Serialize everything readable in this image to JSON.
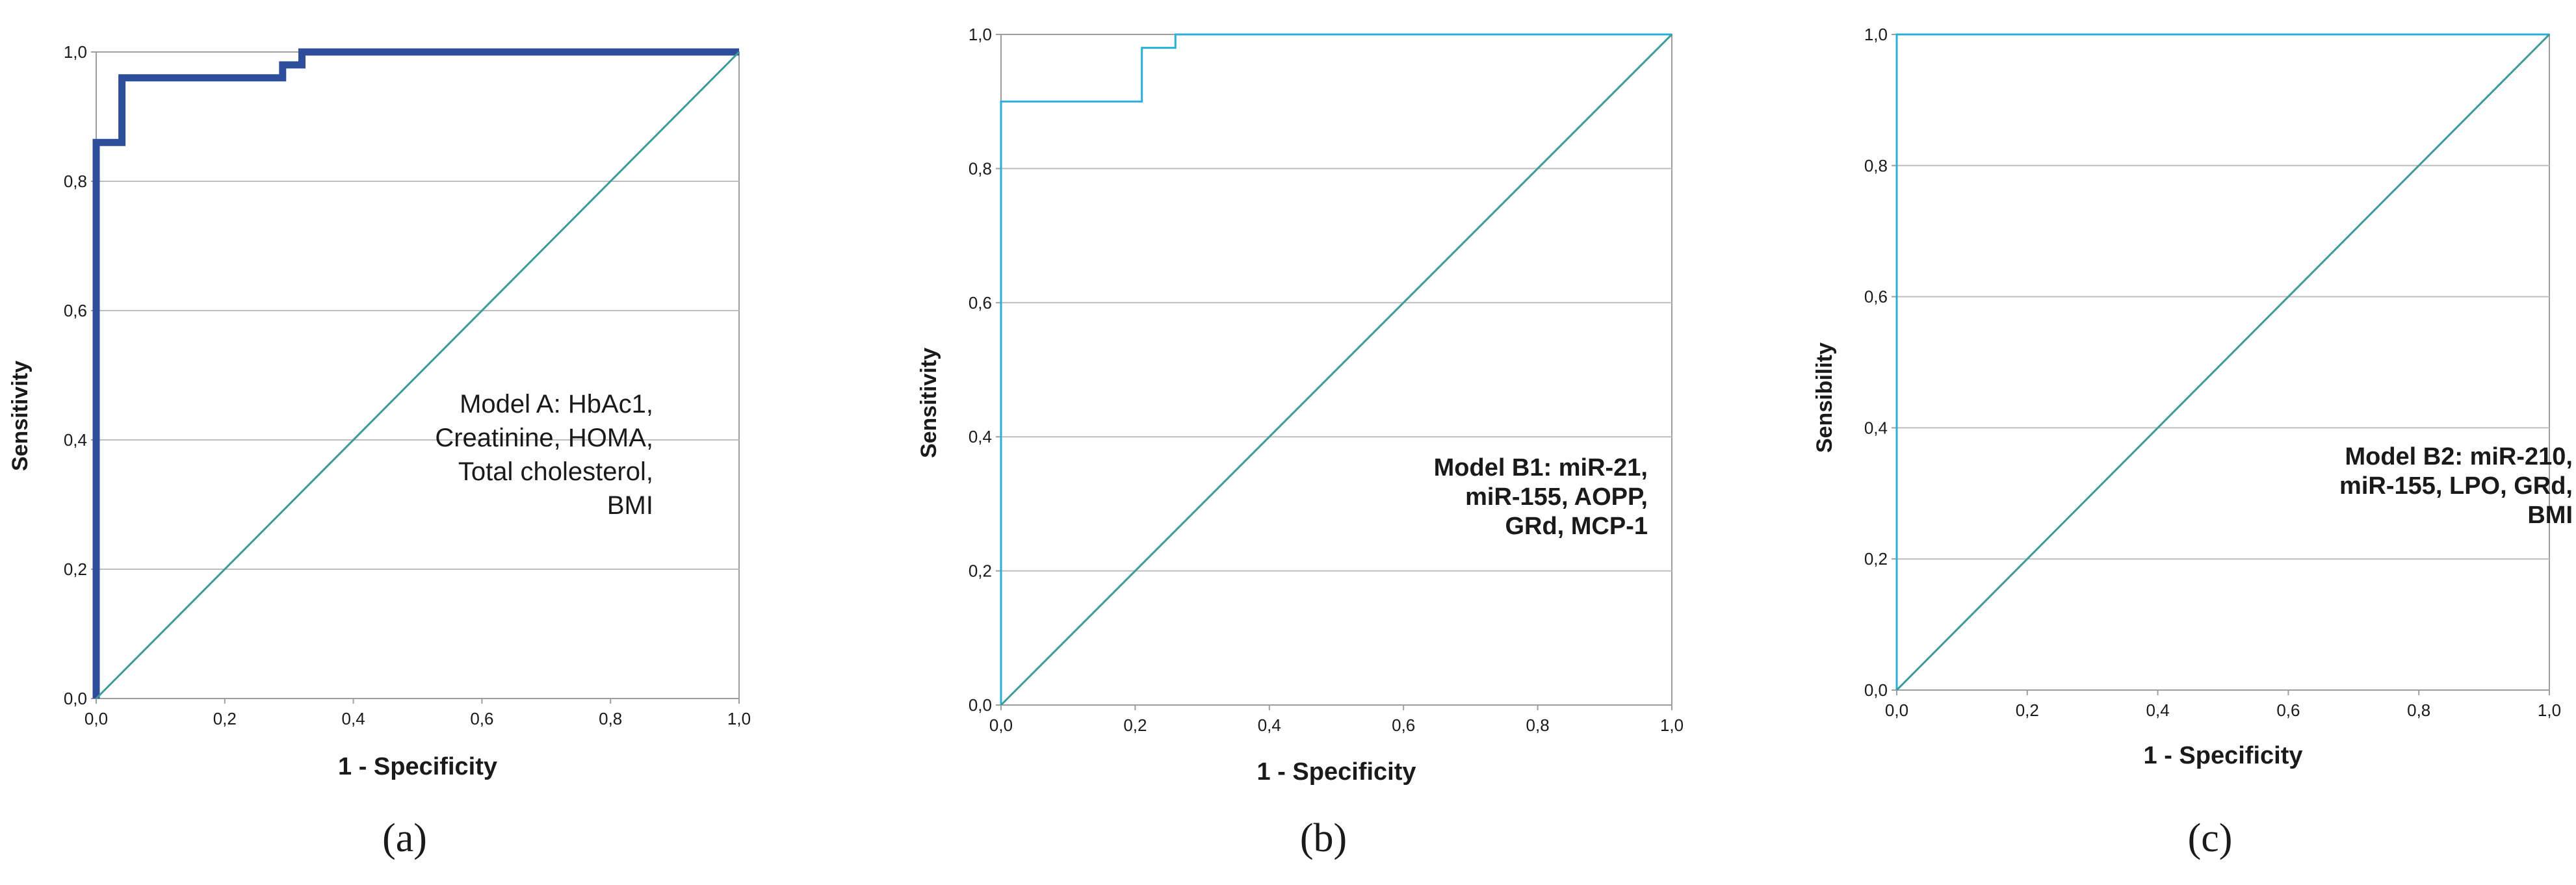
{
  "colors": {
    "background": "#ffffff",
    "grid": "#bdbdbd",
    "frame": "#9e9e9e",
    "diagonal": "#3c9a9a",
    "curve_a": "#2e4d9b",
    "curve_bc": "#2ab0d8",
    "text": "#1a1a1a"
  },
  "chart_data": [
    {
      "type": "line",
      "panel_label": "(a)",
      "title": "",
      "xlabel": "1 - Specificity",
      "ylabel": "Sensitivity",
      "xlim": [
        0,
        1
      ],
      "ylim": [
        0,
        1
      ],
      "x_tick_labels": [
        "0,0",
        "0,2",
        "0,4",
        "0,6",
        "0,8",
        "1,0"
      ],
      "y_tick_labels": [
        "0,0",
        "0,2",
        "0,4",
        "0,6",
        "0,8",
        "1,0"
      ],
      "grid": "horizontal",
      "annotation": [
        "Model A: HbAc1,",
        "Creatinine, HOMA,",
        "Total cholesterol,",
        "BMI"
      ],
      "series": [
        {
          "name": "ROC",
          "color": "curve_a",
          "width": "thick",
          "step": true,
          "x": [
            0,
            0,
            0.04,
            0.04,
            0.29,
            0.29,
            0.32,
            0.32,
            1.0
          ],
          "y": [
            0,
            0.86,
            0.86,
            0.96,
            0.96,
            0.98,
            0.98,
            1.0,
            1.0
          ]
        },
        {
          "name": "Reference line",
          "color": "diagonal",
          "width": "thin",
          "step": false,
          "x": [
            0,
            1
          ],
          "y": [
            0,
            1
          ]
        }
      ]
    },
    {
      "type": "line",
      "panel_label": "(b)",
      "title": "",
      "xlabel": "1 - Specificity",
      "ylabel": "Sensitivity",
      "xlim": [
        0,
        1
      ],
      "ylim": [
        0,
        1
      ],
      "x_tick_labels": [
        "0,0",
        "0,2",
        "0,4",
        "0,6",
        "0,8",
        "1,0"
      ],
      "y_tick_labels": [
        "0,0",
        "0,2",
        "0,4",
        "0,6",
        "0,8",
        "1,0"
      ],
      "grid": "horizontal",
      "annotation": [
        "Model B1: miR-21,",
        "miR-155, AOPP,",
        "GRd, MCP-1"
      ],
      "series": [
        {
          "name": "ROC",
          "color": "curve_bc",
          "width": "thin",
          "step": true,
          "x": [
            0,
            0,
            0.21,
            0.21,
            0.26,
            0.26,
            1.0
          ],
          "y": [
            0,
            0.9,
            0.9,
            0.98,
            0.98,
            1.0,
            1.0
          ]
        },
        {
          "name": "Reference line",
          "color": "diagonal",
          "width": "thin",
          "step": false,
          "x": [
            0,
            1
          ],
          "y": [
            0,
            1
          ]
        }
      ]
    },
    {
      "type": "line",
      "panel_label": "(c)",
      "title": "",
      "xlabel": "1 - Specificity",
      "ylabel": "Sensibility",
      "xlim": [
        0,
        1
      ],
      "ylim": [
        0,
        1
      ],
      "x_tick_labels": [
        "0,0",
        "0,2",
        "0,4",
        "0,6",
        "0,8",
        "1,0"
      ],
      "y_tick_labels": [
        "0,0",
        "0,2",
        "0,4",
        "0,6",
        "0,8",
        "1,0"
      ],
      "grid": "horizontal",
      "annotation": [
        "Model B2: miR-210,",
        "miR-155, LPO, GRd,",
        "BMI"
      ],
      "series": [
        {
          "name": "ROC",
          "color": "curve_bc",
          "width": "thin",
          "step": true,
          "x": [
            0,
            0,
            1.0
          ],
          "y": [
            0,
            1.0,
            1.0
          ]
        },
        {
          "name": "Reference line",
          "color": "diagonal",
          "width": "thin",
          "step": false,
          "x": [
            0,
            1
          ],
          "y": [
            0,
            1
          ]
        }
      ]
    }
  ]
}
